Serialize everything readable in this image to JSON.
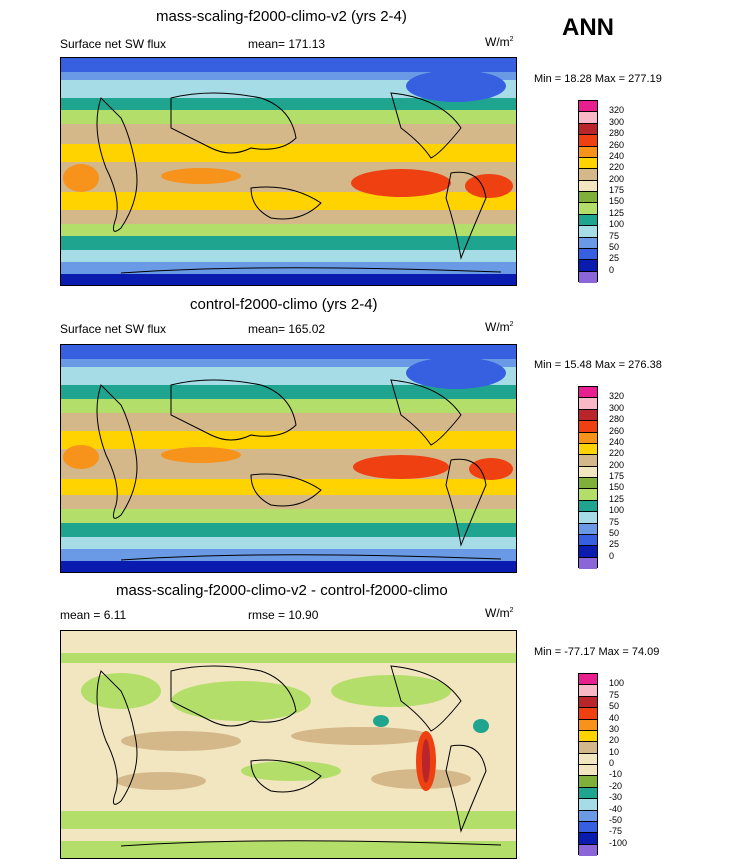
{
  "season": "ANN",
  "panels": [
    {
      "title": "mass-scaling-f2000-climo-v2 (yrs 2-4)",
      "left_label": "Surface net SW flux",
      "stat_label": "mean= 171.13",
      "unit": "W/m",
      "unit_sup": "2",
      "minmax": "Min =  18.28 Max = 277.19",
      "levels": [
        "320",
        "300",
        "280",
        "260",
        "240",
        "220",
        "200",
        "175",
        "150",
        "125",
        "100",
        "75",
        "50",
        "25",
        "0"
      ],
      "colors": [
        "#e8208f",
        "#f8b8c8",
        "#b8252a",
        "#ee4010",
        "#f7921a",
        "#ffd300",
        "#d4b88a",
        "#f2e6c0",
        "#7fb03a",
        "#b4de6a",
        "#1fa58f",
        "#a6dce6",
        "#6a9ae6",
        "#3760e0",
        "#0a1bb0",
        "#8a66d8"
      ]
    },
    {
      "title": "control-f2000-climo (yrs 2-4)",
      "left_label": "Surface net SW flux",
      "stat_label": "mean= 165.02",
      "unit": "W/m",
      "unit_sup": "2",
      "minmax": "Min =  15.48 Max = 276.38",
      "levels": [
        "320",
        "300",
        "280",
        "260",
        "240",
        "220",
        "200",
        "175",
        "150",
        "125",
        "100",
        "75",
        "50",
        "25",
        "0"
      ],
      "colors": [
        "#e8208f",
        "#f8b8c8",
        "#b8252a",
        "#ee4010",
        "#f7921a",
        "#ffd300",
        "#d4b88a",
        "#f2e6c0",
        "#7fb03a",
        "#b4de6a",
        "#1fa58f",
        "#a6dce6",
        "#6a9ae6",
        "#3760e0",
        "#0a1bb0",
        "#8a66d8"
      ]
    },
    {
      "title": "mass-scaling-f2000-climo-v2 - control-f2000-climo",
      "left_label": "mean =   6.11",
      "stat_label": "rmse =  10.90",
      "unit": "W/m",
      "unit_sup": "2",
      "minmax": "Min = -77.17 Max =  74.09",
      "levels": [
        "100",
        "75",
        "50",
        "40",
        "30",
        "20",
        "10",
        "0",
        "-10",
        "-20",
        "-30",
        "-40",
        "-50",
        "-75",
        "-100"
      ],
      "colors": [
        "#e8208f",
        "#f8b8c8",
        "#b8252a",
        "#ee4010",
        "#f7921a",
        "#ffd300",
        "#d4b88a",
        "#f2e6c0",
        "#f2e6c0",
        "#7fb03a",
        "#1fa58f",
        "#a6dce6",
        "#6a9ae6",
        "#3760e0",
        "#0a1bb0",
        "#8a66d8"
      ]
    }
  ]
}
